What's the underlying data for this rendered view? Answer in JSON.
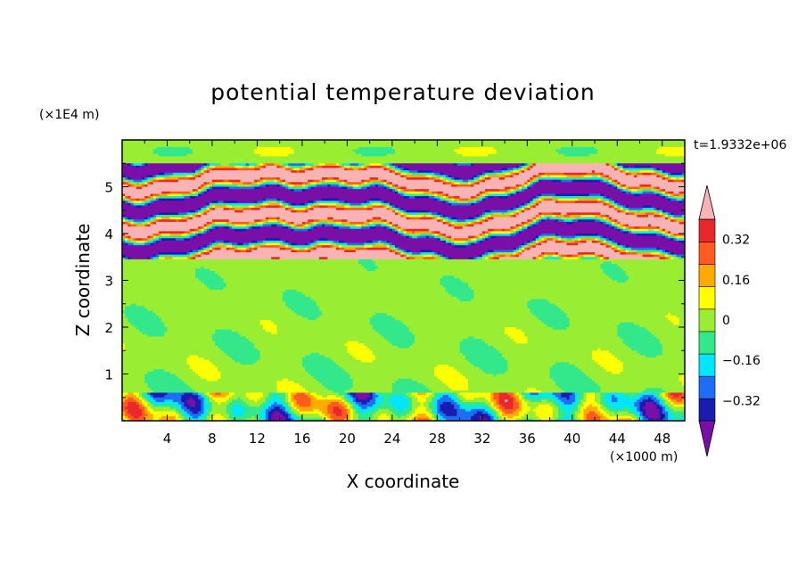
{
  "chart_data": {
    "type": "heatmap",
    "title": "potential temperature deviation",
    "xlabel": "X coordinate",
    "ylabel": "Z coordinate",
    "x_unit_label": "(×1000 m)",
    "y_unit_label": "(×1E4 m)",
    "time_label": "t=1.9332e+06",
    "xlim": [
      0,
      50
    ],
    "ylim": [
      0,
      6
    ],
    "x_ticks": [
      "4",
      "8",
      "12",
      "16",
      "20",
      "24",
      "28",
      "32",
      "36",
      "40",
      "44",
      "48"
    ],
    "y_ticks": [
      "1",
      "2",
      "3",
      "4",
      "5"
    ],
    "colorbar": {
      "labels": [
        "0.32",
        "0.16",
        "0",
        "−0.16",
        "−0.32"
      ],
      "label_values": [
        0.32,
        0.16,
        0,
        -0.16,
        -0.32
      ],
      "levels": [
        -0.4,
        -0.32,
        -0.24,
        -0.16,
        -0.08,
        0,
        0.08,
        0.16,
        0.24,
        0.32,
        0.4
      ],
      "colors": [
        "#7a0fa8",
        "#1b1bb0",
        "#1d6ef5",
        "#00e6ff",
        "#33e88a",
        "#99ee33",
        "#ffff00",
        "#ffaa00",
        "#ff5a1f",
        "#e8282a",
        "#f8b4b4"
      ],
      "extend": "both"
    },
    "bands": [
      {
        "z": [
          0,
          0.62
        ],
        "description_value": "mixed -0.32 to 0.32"
      },
      {
        "z": [
          0.62,
          3.45
        ],
        "description_value": "about 0"
      },
      {
        "z": [
          3.45,
          5.5
        ],
        "description_value": "alternating below -0.4 and above 0.4"
      },
      {
        "z": [
          5.5,
          6.0
        ],
        "description_value": "about 0"
      }
    ]
  }
}
